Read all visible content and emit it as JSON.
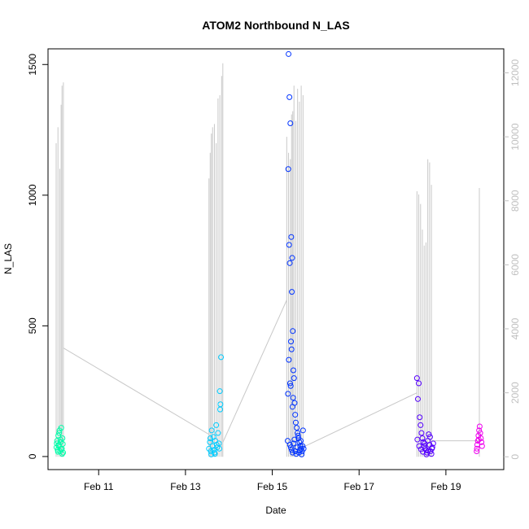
{
  "chart_data": {
    "type": "scatter",
    "title": "ATOM2 Northbound N_LAS",
    "xlabel": "Date",
    "ylabel": "N_LAS",
    "xlim": [
      "2010-02-09T20:00",
      "2010-02-20T08:00"
    ],
    "ylim": [
      -50,
      1560
    ],
    "y2lim": [
      -400,
      12750
    ],
    "x_ticks": [
      "Feb 11",
      "Feb 13",
      "Feb 15",
      "Feb 17",
      "Feb 19"
    ],
    "x_tick_values": [
      "2010-02-11",
      "2010-02-13",
      "2010-02-15",
      "2010-02-17",
      "2010-02-19"
    ],
    "y_ticks": [
      0,
      500,
      1000,
      1500
    ],
    "y2_ticks": [
      0,
      2000,
      4000,
      6000,
      8000,
      10000,
      12000
    ],
    "grid": false,
    "colors": {
      "secondary_line": "#c8c8c8",
      "secondary_axis_text": "#c0c0c0",
      "frame": "#000000"
    },
    "series": [
      {
        "color": "#00ffaa",
        "points": [
          [
            "2010-02-10T00:40",
            35
          ],
          [
            "2010-02-10T01:00",
            60
          ],
          [
            "2010-02-10T01:20",
            25
          ],
          [
            "2010-02-10T01:40",
            80
          ],
          [
            "2010-02-10T02:00",
            45
          ],
          [
            "2010-02-10T02:20",
            100
          ],
          [
            "2010-02-10T02:40",
            20
          ],
          [
            "2010-02-10T03:00",
            55
          ],
          [
            "2010-02-10T03:20",
            110
          ],
          [
            "2010-02-10T03:40",
            30
          ],
          [
            "2010-02-10T04:00",
            70
          ],
          [
            "2010-02-10T04:20",
            15
          ],
          [
            "2010-02-10T00:50",
            50
          ],
          [
            "2010-02-10T01:50",
            40
          ],
          [
            "2010-02-10T02:50",
            65
          ],
          [
            "2010-02-10T03:50",
            10
          ],
          [
            "2010-02-10T02:10",
            90
          ],
          [
            "2010-02-10T03:10",
            28
          ],
          [
            "2010-02-10T04:10",
            48
          ],
          [
            "2010-02-10T01:30",
            18
          ]
        ]
      },
      {
        "color": "#00ccff",
        "points": [
          [
            "2010-02-13T13:00",
            30
          ],
          [
            "2010-02-13T13:30",
            55
          ],
          [
            "2010-02-13T14:00",
            20
          ],
          [
            "2010-02-13T14:30",
            100
          ],
          [
            "2010-02-13T15:00",
            40
          ],
          [
            "2010-02-13T15:30",
            75
          ],
          [
            "2010-02-13T16:00",
            15
          ],
          [
            "2010-02-13T16:30",
            60
          ],
          [
            "2010-02-13T17:00",
            120
          ],
          [
            "2010-02-13T17:30",
            35
          ],
          [
            "2010-02-13T18:00",
            90
          ],
          [
            "2010-02-13T18:30",
            50
          ],
          [
            "2010-02-13T19:00",
            250
          ],
          [
            "2010-02-13T19:20",
            200
          ],
          [
            "2010-02-13T19:40",
            380
          ],
          [
            "2010-02-13T19:10",
            180
          ],
          [
            "2010-02-13T14:15",
            8
          ],
          [
            "2010-02-13T15:45",
            25
          ],
          [
            "2010-02-13T17:15",
            45
          ],
          [
            "2010-02-13T18:45",
            30
          ],
          [
            "2010-02-13T16:15",
            10
          ],
          [
            "2010-02-13T13:45",
            70
          ]
        ]
      },
      {
        "color": "#0033ff",
        "points": [
          [
            "2010-02-15T09:00",
            1540
          ],
          [
            "2010-02-15T09:30",
            1375
          ],
          [
            "2010-02-15T10:00",
            1275
          ],
          [
            "2010-02-15T08:50",
            1100
          ],
          [
            "2010-02-15T10:30",
            840
          ],
          [
            "2010-02-15T11:00",
            760
          ],
          [
            "2010-02-15T09:20",
            810
          ],
          [
            "2010-02-15T09:40",
            740
          ],
          [
            "2010-02-15T10:50",
            630
          ],
          [
            "2010-02-15T11:20",
            480
          ],
          [
            "2010-02-15T10:20",
            440
          ],
          [
            "2010-02-15T10:40",
            410
          ],
          [
            "2010-02-15T09:10",
            370
          ],
          [
            "2010-02-15T11:40",
            330
          ],
          [
            "2010-02-15T12:00",
            300
          ],
          [
            "2010-02-15T09:50",
            280
          ],
          [
            "2010-02-15T10:10",
            270
          ],
          [
            "2010-02-15T08:40",
            240
          ],
          [
            "2010-02-15T11:30",
            225
          ],
          [
            "2010-02-15T12:20",
            205
          ],
          [
            "2010-02-15T11:10",
            190
          ],
          [
            "2010-02-15T12:40",
            160
          ],
          [
            "2010-02-15T13:00",
            130
          ],
          [
            "2010-02-15T13:30",
            110
          ],
          [
            "2010-02-15T14:00",
            90
          ],
          [
            "2010-02-15T14:30",
            70
          ],
          [
            "2010-02-15T15:00",
            55
          ],
          [
            "2010-02-15T15:30",
            40
          ],
          [
            "2010-02-15T16:00",
            30
          ],
          [
            "2010-02-15T16:30",
            20
          ],
          [
            "2010-02-15T08:30",
            60
          ],
          [
            "2010-02-15T09:45",
            45
          ],
          [
            "2010-02-15T10:15",
            35
          ],
          [
            "2010-02-15T10:45",
            25
          ],
          [
            "2010-02-15T11:15",
            15
          ],
          [
            "2010-02-15T11:45",
            50
          ],
          [
            "2010-02-15T12:15",
            65
          ],
          [
            "2010-02-15T12:45",
            20
          ],
          [
            "2010-02-15T13:15",
            10
          ],
          [
            "2010-02-15T13:45",
            35
          ],
          [
            "2010-02-15T14:15",
            80
          ],
          [
            "2010-02-15T14:45",
            15
          ],
          [
            "2010-02-15T15:15",
            25
          ],
          [
            "2010-02-15T15:45",
            60
          ],
          [
            "2010-02-15T16:15",
            8
          ],
          [
            "2010-02-15T16:45",
            40
          ],
          [
            "2010-02-15T17:00",
            100
          ],
          [
            "2010-02-15T17:20",
            30
          ]
        ]
      },
      {
        "color": "#5500ff",
        "points": [
          [
            "2010-02-18T08:00",
            300
          ],
          [
            "2010-02-18T08:30",
            220
          ],
          [
            "2010-02-18T09:00",
            280
          ],
          [
            "2010-02-18T09:30",
            150
          ],
          [
            "2010-02-18T10:00",
            120
          ],
          [
            "2010-02-18T10:30",
            90
          ],
          [
            "2010-02-18T11:00",
            70
          ],
          [
            "2010-02-18T11:30",
            55
          ],
          [
            "2010-02-18T12:00",
            40
          ],
          [
            "2010-02-18T12:30",
            30
          ],
          [
            "2010-02-18T13:00",
            25
          ],
          [
            "2010-02-18T13:30",
            15
          ],
          [
            "2010-02-18T14:00",
            60
          ],
          [
            "2010-02-18T14:30",
            85
          ],
          [
            "2010-02-18T15:00",
            45
          ],
          [
            "2010-02-18T15:30",
            20
          ],
          [
            "2010-02-18T16:00",
            10
          ],
          [
            "2010-02-18T16:30",
            35
          ],
          [
            "2010-02-18T08:15",
            65
          ],
          [
            "2010-02-18T09:15",
            40
          ],
          [
            "2010-02-18T10:15",
            28
          ],
          [
            "2010-02-18T11:15",
            18
          ],
          [
            "2010-02-18T12:15",
            50
          ],
          [
            "2010-02-18T13:15",
            8
          ],
          [
            "2010-02-18T14:15",
            22
          ],
          [
            "2010-02-18T15:15",
            75
          ],
          [
            "2010-02-18T16:15",
            30
          ],
          [
            "2010-02-18T17:00",
            50
          ]
        ]
      },
      {
        "color": "#ee00ee",
        "points": [
          [
            "2010-02-19T17:00",
            20
          ],
          [
            "2010-02-19T17:20",
            45
          ],
          [
            "2010-02-19T17:40",
            60
          ],
          [
            "2010-02-19T18:00",
            80
          ],
          [
            "2010-02-19T18:20",
            100
          ],
          [
            "2010-02-19T18:40",
            115
          ],
          [
            "2010-02-19T19:00",
            90
          ],
          [
            "2010-02-19T19:20",
            70
          ],
          [
            "2010-02-19T19:40",
            55
          ],
          [
            "2010-02-19T20:00",
            40
          ],
          [
            "2010-02-19T17:10",
            30
          ],
          [
            "2010-02-19T18:10",
            65
          ]
        ]
      }
    ],
    "secondary_series": {
      "color": "#c8c8c8",
      "segments": [
        {
          "x": [
            "2010-02-10T00:30",
            "2010-02-10T01:30",
            "2010-02-10T02:30",
            "2010-02-10T03:15",
            "2010-02-10T03:45",
            "2010-02-10T04:30"
          ],
          "y": [
            9800,
            10300,
            9000,
            11000,
            11600,
            11700
          ]
        },
        {
          "x": [
            "2010-02-13T13:00",
            "2010-02-13T13:40",
            "2010-02-13T14:20",
            "2010-02-13T15:00",
            "2010-02-13T16:00",
            "2010-02-13T17:00",
            "2010-02-13T18:00",
            "2010-02-13T19:00",
            "2010-02-13T20:00",
            "2010-02-13T20:40"
          ],
          "y": [
            8700,
            9500,
            10100,
            10300,
            10400,
            9800,
            11200,
            11300,
            11900,
            12300
          ]
        },
        {
          "x": [
            "2010-02-15T08:00",
            "2010-02-15T09:00",
            "2010-02-15T10:00",
            "2010-02-15T10:40",
            "2010-02-15T11:20",
            "2010-02-15T12:00",
            "2010-02-15T13:00",
            "2010-02-15T14:00",
            "2010-02-15T15:00",
            "2010-02-15T16:00",
            "2010-02-15T17:00"
          ],
          "y": [
            10000,
            9500,
            9300,
            10700,
            10800,
            11600,
            10500,
            11500,
            11100,
            11600,
            11300
          ]
        },
        {
          "x": [
            "2010-02-18T08:00",
            "2010-02-18T09:00",
            "2010-02-18T10:00",
            "2010-02-18T11:00",
            "2010-02-18T12:00",
            "2010-02-18T13:00",
            "2010-02-18T14:00",
            "2010-02-18T15:00",
            "2010-02-18T16:00"
          ],
          "y": [
            8300,
            8200,
            7900,
            7100,
            6600,
            6700,
            9300,
            9200,
            8500
          ]
        },
        {
          "x": [
            "2010-02-19T18:30"
          ],
          "y": [
            8400
          ]
        }
      ],
      "connectors": [
        {
          "x": [
            "2010-02-10T04:30",
            "2010-02-13T13:00"
          ],
          "y": [
            3400,
            700
          ]
        },
        {
          "x": [
            "2010-02-13T20:40",
            "2010-02-15T08:00"
          ],
          "y": [
            450,
            4900
          ]
        },
        {
          "x": [
            "2010-02-15T17:00",
            "2010-02-18T08:00"
          ],
          "y": [
            300,
            2000
          ]
        },
        {
          "x": [
            "2010-02-18T16:00",
            "2010-02-19T18:30"
          ],
          "y": [
            500,
            500
          ]
        }
      ]
    }
  }
}
